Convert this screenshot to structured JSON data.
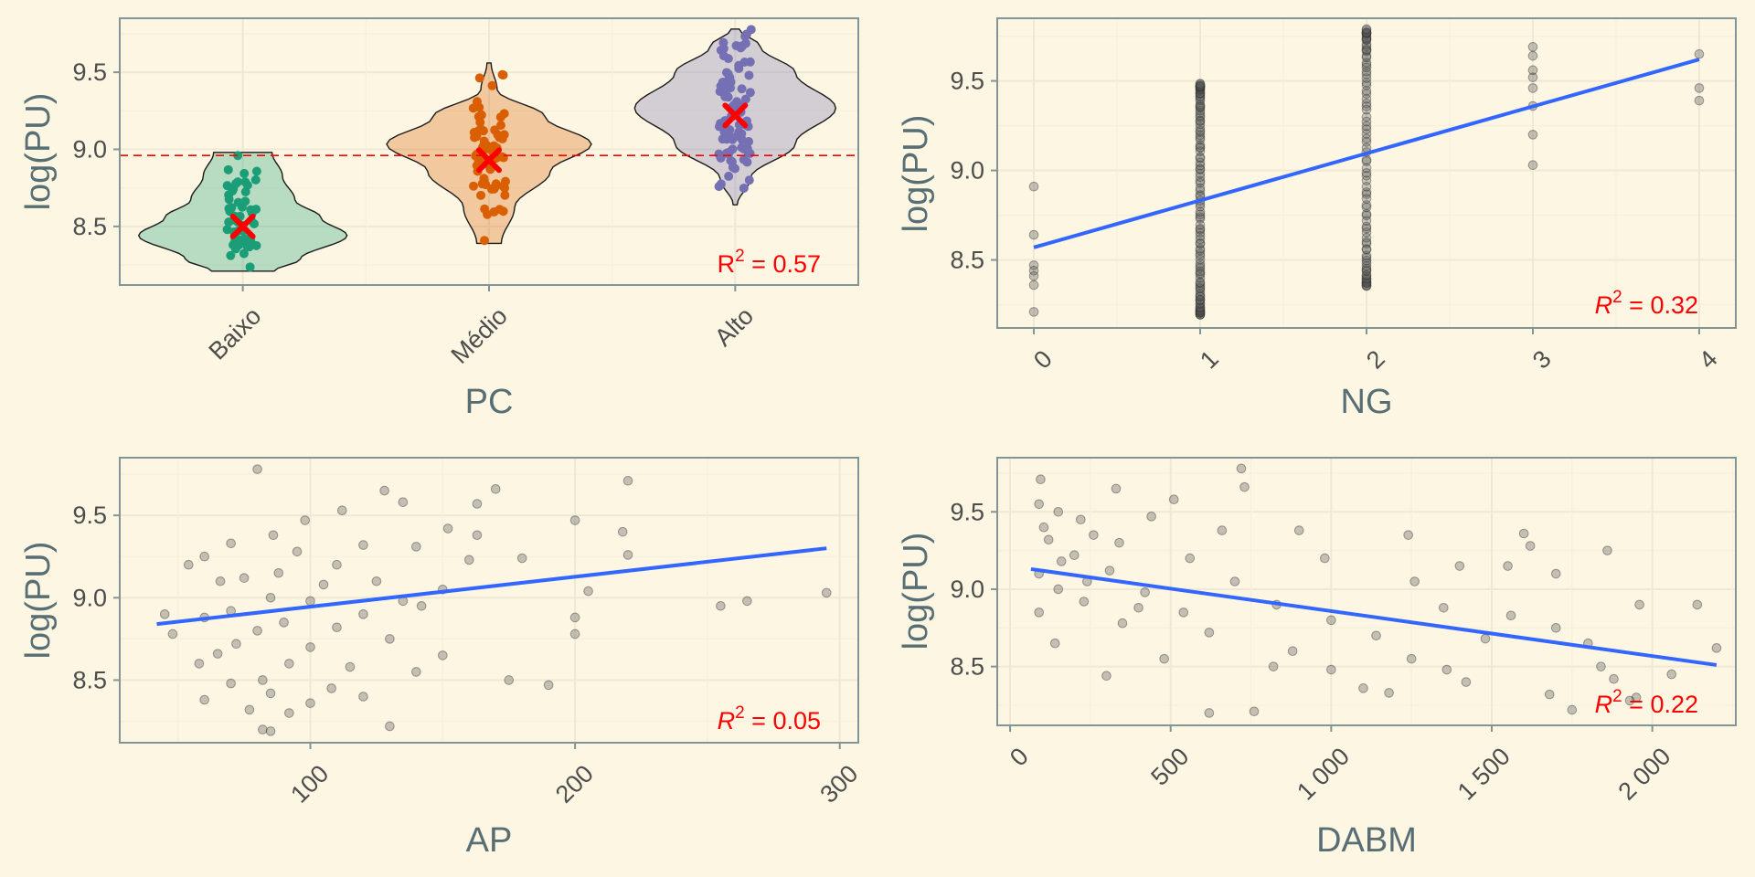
{
  "colors": {
    "background": "#fdf6e3",
    "grid_major": "#eee8d5",
    "grid_minor": "#f5efdc",
    "panel_border": "#839496",
    "axis_title": "#586e75",
    "tick_text": "#4d4d4d",
    "fit_line": "#3366ff",
    "points": "#5a5a5a",
    "annotation": "#ff0000"
  },
  "chart_data": [
    {
      "id": "pc",
      "type": "violin",
      "xlabel": "PC",
      "ylabel": "log(PU)",
      "categories": [
        "Baixo",
        "Médio",
        "Alto"
      ],
      "category_colors": [
        "#1b9e77",
        "#d95f02",
        "#7570b3"
      ],
      "means": [
        8.5,
        8.93,
        9.22
      ],
      "overall_mean_line": 8.96,
      "ranges": [
        [
          8.21,
          8.98
        ],
        [
          8.39,
          9.56
        ],
        [
          8.64,
          9.78
        ]
      ],
      "ylim": [
        8.12,
        9.85
      ],
      "yticks": [
        8.5,
        9.0,
        9.5
      ],
      "r2_label": {
        "prefix": "R",
        "superscript": "2",
        "middle": " = ",
        "value": "0.57"
      },
      "grid": true
    },
    {
      "id": "ng",
      "type": "scatter",
      "xlabel": "NG",
      "ylabel": "log(PU)",
      "xlim": [
        -0.22,
        4.22
      ],
      "ylim": [
        8.12,
        9.85
      ],
      "xticks": [
        "0",
        "1",
        "2",
        "3",
        "4"
      ],
      "yticks": [
        8.5,
        9.0,
        9.5
      ],
      "fit": {
        "x": [
          0,
          4
        ],
        "y": [
          8.57,
          9.62
        ]
      },
      "points": [
        [
          0,
          8.91
        ],
        [
          0,
          8.64
        ],
        [
          0,
          8.47
        ],
        [
          0,
          8.44
        ],
        [
          0,
          8.41
        ],
        [
          0,
          8.36
        ],
        [
          0,
          8.21
        ],
        [
          3,
          9.69
        ],
        [
          3,
          9.64
        ],
        [
          3,
          9.56
        ],
        [
          3,
          9.52
        ],
        [
          3,
          9.46
        ],
        [
          3,
          9.36
        ],
        [
          3,
          9.2
        ],
        [
          3,
          9.03
        ],
        [
          4,
          9.65
        ],
        [
          4,
          9.46
        ],
        [
          4,
          9.39
        ]
      ],
      "point_columns": [
        {
          "x": 1,
          "n": 110,
          "min": 8.2,
          "max": 9.48
        },
        {
          "x": 2,
          "n": 85,
          "min": 8.36,
          "max": 9.78
        }
      ],
      "r2_label": {
        "prefix": "R",
        "superscript": "2",
        "middle": " = ",
        "value": "0.32"
      },
      "grid": true
    },
    {
      "id": "ap",
      "type": "scatter",
      "xlabel": "AP",
      "ylabel": "log(PU)",
      "xlim": [
        28,
        307
      ],
      "ylim": [
        8.12,
        9.85
      ],
      "xticks": [
        "100",
        "200",
        "300"
      ],
      "yticks": [
        8.5,
        9.0,
        9.5
      ],
      "fit": {
        "x": [
          42,
          295
        ],
        "y": [
          8.84,
          9.3
        ]
      },
      "points": [
        [
          80,
          9.78
        ],
        [
          220,
          9.71
        ],
        [
          128,
          9.65
        ],
        [
          170,
          9.66
        ],
        [
          163,
          9.57
        ],
        [
          135,
          9.58
        ],
        [
          98,
          9.47
        ],
        [
          112,
          9.53
        ],
        [
          200,
          9.47
        ],
        [
          218,
          9.4
        ],
        [
          152,
          9.42
        ],
        [
          163,
          9.38
        ],
        [
          86,
          9.38
        ],
        [
          70,
          9.33
        ],
        [
          120,
          9.32
        ],
        [
          140,
          9.31
        ],
        [
          95,
          9.28
        ],
        [
          60,
          9.25
        ],
        [
          180,
          9.24
        ],
        [
          220,
          9.26
        ],
        [
          110,
          9.2
        ],
        [
          88,
          9.15
        ],
        [
          75,
          9.12
        ],
        [
          66,
          9.1
        ],
        [
          125,
          9.1
        ],
        [
          150,
          9.05
        ],
        [
          205,
          9.04
        ],
        [
          85,
          9.0
        ],
        [
          100,
          8.98
        ],
        [
          142,
          8.95
        ],
        [
          70,
          8.92
        ],
        [
          120,
          8.9
        ],
        [
          60,
          8.88
        ],
        [
          45,
          8.9
        ],
        [
          90,
          8.85
        ],
        [
          110,
          8.82
        ],
        [
          200,
          8.88
        ],
        [
          255,
          8.95
        ],
        [
          265,
          8.98
        ],
        [
          295,
          9.03
        ],
        [
          80,
          8.8
        ],
        [
          130,
          8.75
        ],
        [
          72,
          8.72
        ],
        [
          100,
          8.7
        ],
        [
          150,
          8.65
        ],
        [
          65,
          8.66
        ],
        [
          92,
          8.6
        ],
        [
          115,
          8.58
        ],
        [
          140,
          8.55
        ],
        [
          82,
          8.5
        ],
        [
          70,
          8.48
        ],
        [
          108,
          8.45
        ],
        [
          175,
          8.5
        ],
        [
          190,
          8.47
        ],
        [
          85,
          8.42
        ],
        [
          120,
          8.4
        ],
        [
          60,
          8.38
        ],
        [
          100,
          8.36
        ],
        [
          77,
          8.32
        ],
        [
          92,
          8.3
        ],
        [
          130,
          8.22
        ],
        [
          82,
          8.2
        ],
        [
          85,
          8.19
        ],
        [
          48,
          8.78
        ],
        [
          54,
          9.2
        ],
        [
          160,
          9.23
        ],
        [
          200,
          8.78
        ],
        [
          105,
          9.08
        ],
        [
          135,
          8.98
        ],
        [
          58,
          8.6
        ]
      ],
      "r2_label": {
        "prefix": "R",
        "superscript": "2",
        "middle": " = ",
        "value": "0.05"
      },
      "grid": true
    },
    {
      "id": "dabm",
      "type": "scatter",
      "xlabel": "DABM",
      "ylabel": "log(PU)",
      "xlim": [
        -40,
        2260
      ],
      "ylim": [
        8.12,
        9.85
      ],
      "xticks": [
        "0",
        "500",
        "1 000",
        "1 500",
        "2 000"
      ],
      "yticks": [
        8.5,
        9.0,
        9.5
      ],
      "fit": {
        "x": [
          65,
          2200
        ],
        "y": [
          9.13,
          8.51
        ]
      },
      "points": [
        [
          720,
          9.78
        ],
        [
          95,
          9.71
        ],
        [
          330,
          9.65
        ],
        [
          730,
          9.66
        ],
        [
          90,
          9.55
        ],
        [
          150,
          9.5
        ],
        [
          510,
          9.58
        ],
        [
          220,
          9.45
        ],
        [
          440,
          9.47
        ],
        [
          105,
          9.4
        ],
        [
          660,
          9.38
        ],
        [
          1600,
          9.36
        ],
        [
          1620,
          9.28
        ],
        [
          260,
          9.35
        ],
        [
          900,
          9.38
        ],
        [
          120,
          9.32
        ],
        [
          340,
          9.3
        ],
        [
          1240,
          9.35
        ],
        [
          1860,
          9.25
        ],
        [
          200,
          9.22
        ],
        [
          560,
          9.2
        ],
        [
          980,
          9.2
        ],
        [
          1550,
          9.15
        ],
        [
          90,
          9.1
        ],
        [
          310,
          9.12
        ],
        [
          1400,
          9.15
        ],
        [
          700,
          9.05
        ],
        [
          1700,
          9.1
        ],
        [
          150,
          9.0
        ],
        [
          420,
          8.98
        ],
        [
          1260,
          9.05
        ],
        [
          2140,
          8.9
        ],
        [
          230,
          8.92
        ],
        [
          830,
          8.9
        ],
        [
          1350,
          8.88
        ],
        [
          90,
          8.85
        ],
        [
          540,
          8.85
        ],
        [
          1960,
          8.9
        ],
        [
          1000,
          8.8
        ],
        [
          350,
          8.78
        ],
        [
          1700,
          8.75
        ],
        [
          1140,
          8.7
        ],
        [
          620,
          8.72
        ],
        [
          1480,
          8.68
        ],
        [
          140,
          8.65
        ],
        [
          1800,
          8.65
        ],
        [
          880,
          8.6
        ],
        [
          2200,
          8.62
        ],
        [
          1250,
          8.55
        ],
        [
          480,
          8.55
        ],
        [
          1840,
          8.5
        ],
        [
          1000,
          8.48
        ],
        [
          1360,
          8.48
        ],
        [
          2060,
          8.45
        ],
        [
          300,
          8.44
        ],
        [
          1880,
          8.42
        ],
        [
          1420,
          8.4
        ],
        [
          1680,
          8.32
        ],
        [
          1180,
          8.33
        ],
        [
          1950,
          8.3
        ],
        [
          620,
          8.2
        ],
        [
          760,
          8.21
        ],
        [
          1750,
          8.22
        ],
        [
          1930,
          8.28
        ],
        [
          1100,
          8.36
        ],
        [
          820,
          8.5
        ],
        [
          240,
          9.05
        ],
        [
          160,
          9.18
        ],
        [
          400,
          8.88
        ],
        [
          1560,
          8.83
        ]
      ],
      "r2_label": {
        "prefix": "R",
        "superscript": "2",
        "middle": " = ",
        "value": "0.22"
      },
      "grid": true
    }
  ]
}
